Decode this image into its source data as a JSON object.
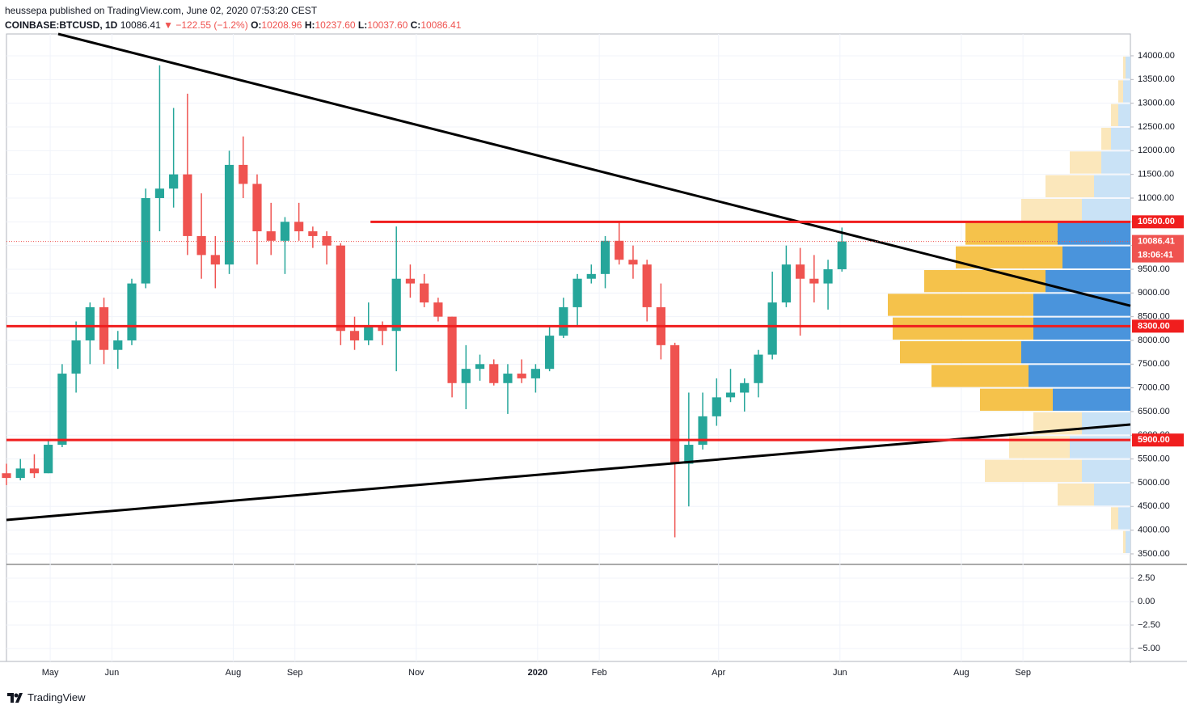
{
  "header": {
    "publisher": "heussepa published on TradingView.com, June 02, 2020 07:53:20 CEST",
    "symbol": "COINBASE:BTCUSD, 1D",
    "last": 10086.41,
    "arrow": "▼",
    "change": "−122.55 (−1.2%)",
    "ohlc": [
      {
        "label": "O:",
        "value": 10208.96
      },
      {
        "label": "H:",
        "value": 10237.6,
        "text": "10237.60"
      },
      {
        "label": "L:",
        "value": 10037.6,
        "text": "10037.60"
      },
      {
        "label": "C:",
        "value": 10086.41
      }
    ]
  },
  "chart_data": {
    "type": "candlestick",
    "x": [
      0,
      7,
      14,
      21,
      28,
      35,
      42,
      49,
      56,
      63,
      70,
      77,
      84,
      91,
      98,
      105,
      112,
      119,
      126,
      133,
      140,
      147,
      154,
      161,
      168,
      175,
      182,
      189,
      196,
      203,
      210,
      217,
      224,
      231,
      238,
      245,
      252,
      259,
      266,
      273,
      280,
      287,
      294,
      301,
      308,
      315,
      322,
      329,
      336,
      343,
      350,
      357,
      364,
      371,
      378,
      385,
      392,
      399,
      406,
      413,
      420
    ],
    "open": [
      5200,
      5100,
      5300,
      5200,
      5800,
      7300,
      8000,
      8700,
      7800,
      8000,
      9200,
      11000,
      11200,
      11500,
      10200,
      9800,
      9600,
      11700,
      11300,
      10300,
      10100,
      10500,
      10300,
      10200,
      10000,
      8200,
      8000,
      8300,
      8200,
      9300,
      9200,
      8800,
      8500,
      7100,
      7400,
      7500,
      7100,
      7300,
      7200,
      7400,
      8100,
      8700,
      9300,
      9400,
      10100,
      9700,
      9600,
      8700,
      7900,
      5400,
      5800,
      6400,
      6800,
      6900,
      7100,
      7700,
      8800,
      9600,
      9300,
      9200,
      9500
    ],
    "high": [
      5400,
      5500,
      5600,
      5900,
      7500,
      8400,
      8800,
      8900,
      8200,
      9300,
      11200,
      13800,
      12900,
      13200,
      11100,
      10200,
      12000,
      12300,
      11500,
      10900,
      10600,
      10900,
      10400,
      10300,
      10050,
      8500,
      8800,
      8400,
      10400,
      9600,
      9400,
      8900,
      8500,
      7900,
      7700,
      7600,
      7500,
      7600,
      7500,
      8300,
      8900,
      9400,
      9600,
      10200,
      10500,
      10000,
      9700,
      9200,
      7950,
      6900,
      6900,
      7200,
      7400,
      7200,
      7800,
      9450,
      10000,
      9950,
      9800,
      9700,
      10380
    ],
    "low": [
      4950,
      5050,
      5100,
      5200,
      5750,
      6900,
      7500,
      7500,
      7400,
      7900,
      9100,
      10300,
      10800,
      9800,
      9300,
      9100,
      9400,
      11000,
      9600,
      9800,
      9400,
      10100,
      9950,
      9600,
      7900,
      7800,
      7900,
      7900,
      7350,
      8900,
      8700,
      8400,
      6800,
      6550,
      7150,
      7050,
      6450,
      7100,
      6900,
      7350,
      8050,
      8300,
      9200,
      9100,
      9600,
      9300,
      8400,
      7600,
      3850,
      4500,
      5700,
      6200,
      6700,
      6500,
      6800,
      7600,
      8700,
      8100,
      8800,
      8650,
      9450
    ],
    "close": [
      5100,
      5300,
      5200,
      5800,
      7300,
      8000,
      8700,
      7800,
      8000,
      9200,
      11000,
      11200,
      11500,
      10200,
      9800,
      9600,
      11700,
      11300,
      10300,
      10100,
      10500,
      10300,
      10200,
      10000,
      8200,
      8000,
      8300,
      8200,
      9300,
      9200,
      8800,
      8500,
      7100,
      7400,
      7500,
      7100,
      7300,
      7200,
      7400,
      8100,
      8700,
      9300,
      9400,
      10100,
      9700,
      9600,
      8700,
      7900,
      5400,
      5800,
      6400,
      6800,
      6900,
      7100,
      7700,
      8800,
      9600,
      9300,
      9200,
      9500,
      10086.41
    ],
    "up_color": "#26a69a",
    "down_color": "#ef5350",
    "xlim": [
      0,
      565
    ],
    "xticks": [
      {
        "value": 22,
        "label": "May"
      },
      {
        "value": 53,
        "label": "Jun"
      },
      {
        "value": 114,
        "label": "Aug"
      },
      {
        "value": 145,
        "label": "Sep"
      },
      {
        "value": 206,
        "label": "Nov"
      },
      {
        "value": 267,
        "label": "2020"
      },
      {
        "value": 298,
        "label": "Feb"
      },
      {
        "value": 358,
        "label": "Apr"
      },
      {
        "value": 419,
        "label": "Jun"
      },
      {
        "value": 480,
        "label": "Aug"
      },
      {
        "value": 511,
        "label": "Sep"
      }
    ],
    "ylim": [
      3278,
      14460
    ],
    "yticks": [
      {
        "value": 3500,
        "label": "3500.00"
      },
      {
        "value": 4000,
        "label": "4000.00"
      },
      {
        "value": 4500,
        "label": "4500.00"
      },
      {
        "value": 5000,
        "label": "5000.00"
      },
      {
        "value": 5500,
        "label": "5500.00"
      },
      {
        "value": 6000,
        "label": "6000.00"
      },
      {
        "value": 6500,
        "label": "6500.00"
      },
      {
        "value": 7000,
        "label": "7000.00"
      },
      {
        "value": 7500,
        "label": "7500.00"
      },
      {
        "value": 8000,
        "label": "8000.00"
      },
      {
        "value": 8500,
        "label": "8500.00"
      },
      {
        "value": 9000,
        "label": "9000.00"
      },
      {
        "value": 9500,
        "label": "9500.00"
      },
      {
        "value": 10000,
        "label": "10000.00"
      },
      {
        "value": 10500,
        "label": "10500.00"
      },
      {
        "value": 11000,
        "label": "11000.00"
      },
      {
        "value": 11500,
        "label": "11500.00"
      },
      {
        "value": 12000,
        "label": "12000.00"
      },
      {
        "value": 12500,
        "label": "12500.00"
      },
      {
        "value": 13000,
        "label": "13000.00"
      },
      {
        "value": 13500,
        "label": "13500.00"
      },
      {
        "value": 14000,
        "label": "14000.00"
      }
    ],
    "grid": true,
    "levels": [
      {
        "value": 10500,
        "label": "10500.00",
        "color": "#f01e1e"
      },
      {
        "value": 8300,
        "label": "8300.00",
        "color": "#f01e1e"
      },
      {
        "value": 5900,
        "label": "5900.00",
        "color": "#f01e1e"
      }
    ],
    "last_price": {
      "value": 10086.41,
      "label": "10086.41",
      "countdown": "18:06:41",
      "color": "#ef5350"
    },
    "trend_lines": [
      {
        "x": [
          26,
          565
        ],
        "y": [
          14460,
          8730
        ],
        "color": "#000000"
      },
      {
        "x": [
          0,
          565
        ],
        "y": [
          4216,
          6228
        ],
        "color": "#000000"
      }
    ],
    "volume_profile": {
      "bins": [
        3500,
        4000,
        4500,
        5000,
        5500,
        6000,
        6500,
        7000,
        7500,
        8000,
        8500,
        9000,
        9500,
        10000,
        10500,
        11000,
        11500,
        12000,
        12500,
        13000,
        13500,
        14000
      ],
      "total": [
        3,
        8,
        30,
        60,
        50,
        40,
        62,
        82,
        95,
        98,
        100,
        85,
        72,
        68,
        45,
        35,
        25,
        12,
        8,
        5,
        3
      ],
      "up": [
        2,
        5,
        15,
        20,
        25,
        20,
        32,
        42,
        45,
        40,
        40,
        35,
        28,
        30,
        20,
        15,
        12,
        8,
        5,
        3,
        2
      ],
      "value_area": [
        6500,
        10500
      ],
      "up_color": "#4a94dc",
      "down_color": "#f5c24b",
      "up_faint": "#c9e2f6",
      "down_faint": "#fbe7bb"
    }
  },
  "oscillator": {
    "ylim": [
      -6.38,
      3.97
    ],
    "yticks": [
      {
        "value": 2.5,
        "label": "2.50"
      },
      {
        "value": 0,
        "label": "0.00"
      },
      {
        "value": -2.5,
        "label": "−2.50"
      },
      {
        "value": -5,
        "label": "−5.00"
      }
    ]
  },
  "footer": {
    "brand": "TradingView"
  }
}
